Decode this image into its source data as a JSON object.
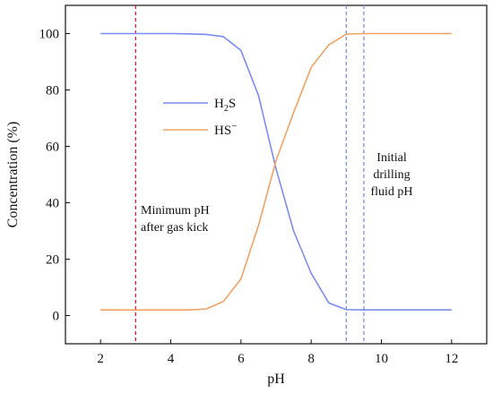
{
  "chart_data": {
    "type": "line",
    "xlabel": "pH",
    "ylabel": "Concentration (%)",
    "xlim": [
      1,
      13
    ],
    "ylim": [
      -10,
      110
    ],
    "xticks": [
      2,
      4,
      6,
      8,
      10,
      12
    ],
    "yticks": [
      0,
      20,
      40,
      60,
      80,
      100
    ],
    "grid": false,
    "legend_position": "center-left",
    "series": [
      {
        "name": "H2S",
        "legend_main": "H",
        "legend_sub": "2",
        "legend_tail": "S",
        "color": "#7b8cf2",
        "x": [
          2,
          2.5,
          3,
          3.5,
          4,
          4.5,
          5,
          5.5,
          6,
          6.5,
          7,
          7.5,
          8,
          8.5,
          9,
          9.5,
          10,
          10.5,
          11,
          11.5,
          12
        ],
        "y": [
          100,
          100,
          100,
          100,
          100,
          99.9,
          99.7,
          98.9,
          94,
          78,
          52,
          30,
          15,
          4.5,
          2.1,
          2.0,
          2.0,
          2.0,
          2.0,
          2.0,
          2.0
        ]
      },
      {
        "name": "HS−",
        "legend_main": "HS",
        "legend_sup": "−",
        "color": "#f0a364",
        "x": [
          2,
          2.5,
          3,
          3.5,
          4,
          4.5,
          5,
          5.5,
          6,
          6.5,
          7,
          7.5,
          8,
          8.5,
          9,
          9.5,
          10,
          10.5,
          11,
          11.5,
          12
        ],
        "y": [
          2.0,
          2.0,
          2.0,
          2.0,
          2.0,
          2.0,
          2.3,
          5,
          13,
          32,
          55,
          72,
          88,
          96,
          99.8,
          100,
          100,
          100,
          100,
          100,
          100
        ]
      }
    ],
    "vlines": [
      {
        "x": 3,
        "color": "#d6202a",
        "style": "dashed"
      },
      {
        "x": 9,
        "color": "#7b8cf2",
        "style": "dashed"
      },
      {
        "x": 9.5,
        "color": "#7b8cf2",
        "style": "dashed"
      }
    ],
    "annotations": {
      "minimum_ph": [
        "Minimum pH",
        "after gas kick"
      ],
      "initial_ph": [
        "Initial",
        "drilling",
        "fluid pH"
      ]
    }
  }
}
